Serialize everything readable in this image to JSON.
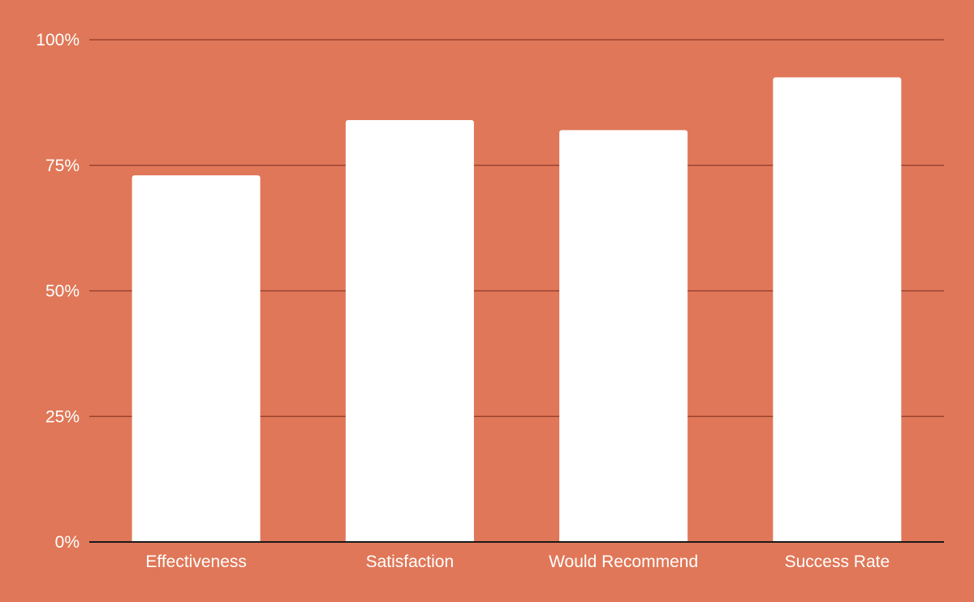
{
  "chart_data": {
    "type": "bar",
    "title": "",
    "xlabel": "",
    "ylabel": "",
    "categories": [
      "Effectiveness",
      "Satisfaction",
      "Would Recommend",
      "Success Rate"
    ],
    "values": [
      73,
      84,
      82,
      92.5
    ],
    "ylim": [
      0,
      100
    ],
    "yticks": [
      0,
      25,
      50,
      75,
      100
    ],
    "ytick_labels": [
      "0%",
      "25%",
      "50%",
      "75%",
      "100%"
    ],
    "grid": true,
    "legend": "none"
  },
  "colors": {
    "background": "#E07758",
    "bar": "#FFFFFF",
    "gridline": "#8E3A28",
    "axis": "#1A1A1A",
    "text": "#FFFFFF"
  }
}
